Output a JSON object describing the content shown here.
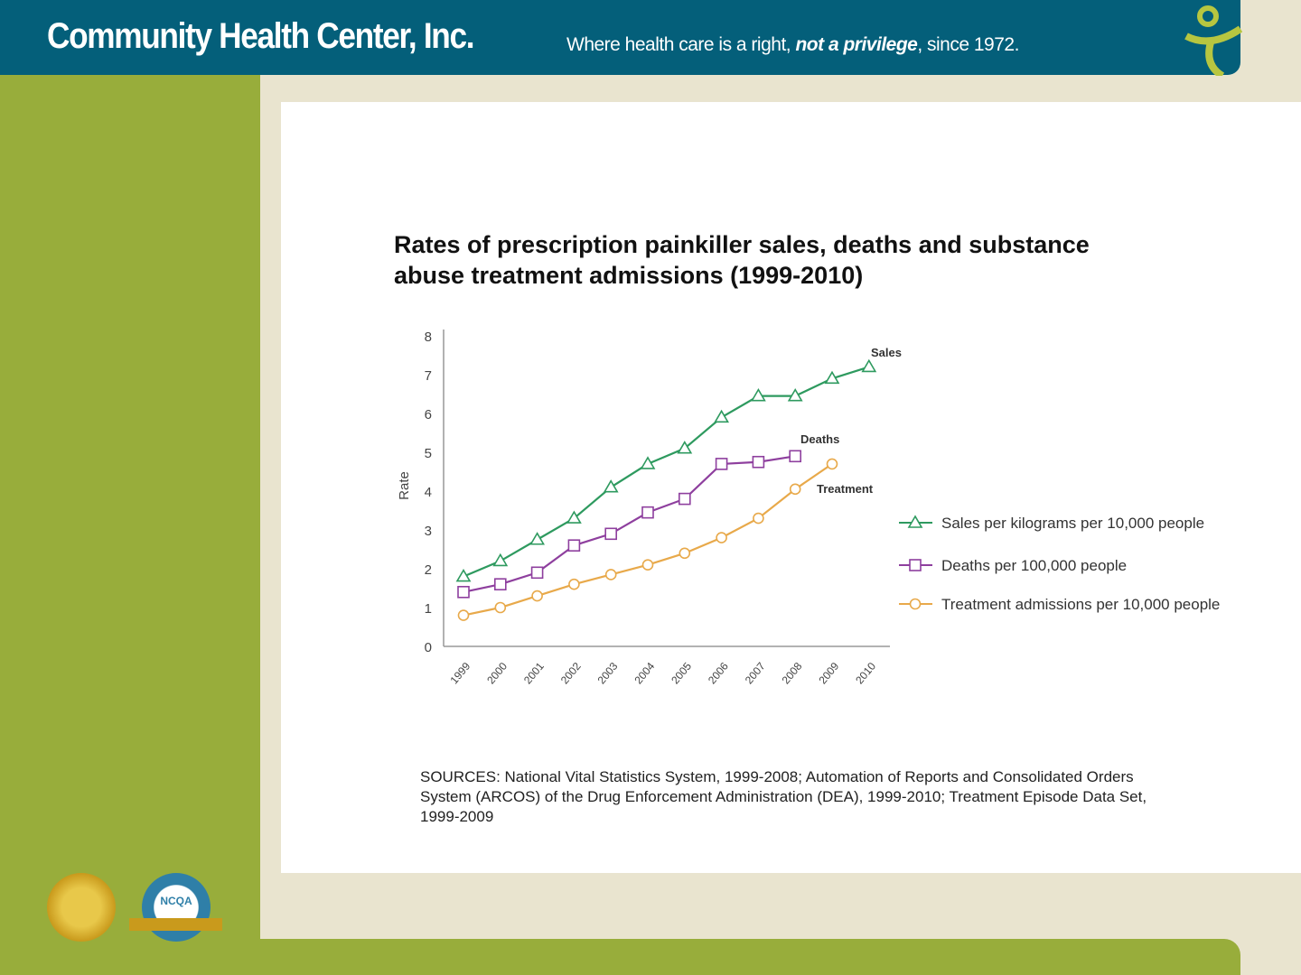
{
  "header": {
    "brand": "Community Health Center, Inc.",
    "tagline_start": "Where health care is a right, ",
    "tagline_emphasis": "not a privilege",
    "tagline_end": ", since 1972."
  },
  "badges": {
    "left": "Joint Commission seal",
    "right": "NCQA"
  },
  "colors": {
    "header": "#045f7a",
    "green": "#98ad3b",
    "background": "#e9e4cf",
    "sales": "#2e9a5f",
    "deaths": "#8e3f9e",
    "treatment": "#e8a94a"
  },
  "chart_data": {
    "type": "line",
    "title": "Rates of prescription painkiller sales, deaths and substance abuse treatment admissions (1999-2010)",
    "xlabel": "",
    "ylabel": "Rate",
    "ylim": [
      0,
      8
    ],
    "yticks": [
      "0",
      "1",
      "2",
      "3",
      "4",
      "5",
      "6",
      "7",
      "8"
    ],
    "categories": [
      "1999",
      "2000",
      "2001",
      "2002",
      "2003",
      "2004",
      "2005",
      "2006",
      "2007",
      "2008",
      "2009",
      "2010"
    ],
    "grid": false,
    "legend_position": "right",
    "series": [
      {
        "name": "Sales per kilograms per 10,000 people",
        "label": "Sales",
        "marker": "triangle",
        "color": "#2e9a5f",
        "values": [
          1.8,
          2.2,
          2.75,
          3.3,
          4.1,
          4.7,
          5.1,
          5.9,
          6.45,
          6.45,
          6.9,
          7.2
        ]
      },
      {
        "name": "Deaths per 100,000 people",
        "label": "Deaths",
        "marker": "square",
        "color": "#8e3f9e",
        "values": [
          1.4,
          1.6,
          1.9,
          2.6,
          2.9,
          3.45,
          3.8,
          4.7,
          4.75,
          4.9,
          null,
          null
        ]
      },
      {
        "name": "Treatment admissions per 10,000 people",
        "label": "Treatment",
        "marker": "circle",
        "color": "#e8a94a",
        "values": [
          0.8,
          1.0,
          1.3,
          1.6,
          1.85,
          2.1,
          2.4,
          2.8,
          3.3,
          4.05,
          4.7,
          null
        ]
      }
    ]
  },
  "sources": "SOURCES: National Vital Statistics System, 1999-2008; Automation of Reports and Consolidated Orders System (ARCOS) of the Drug Enforcement Administration (DEA), 1999-2010; Treatment Episode Data Set, 1999-2009"
}
